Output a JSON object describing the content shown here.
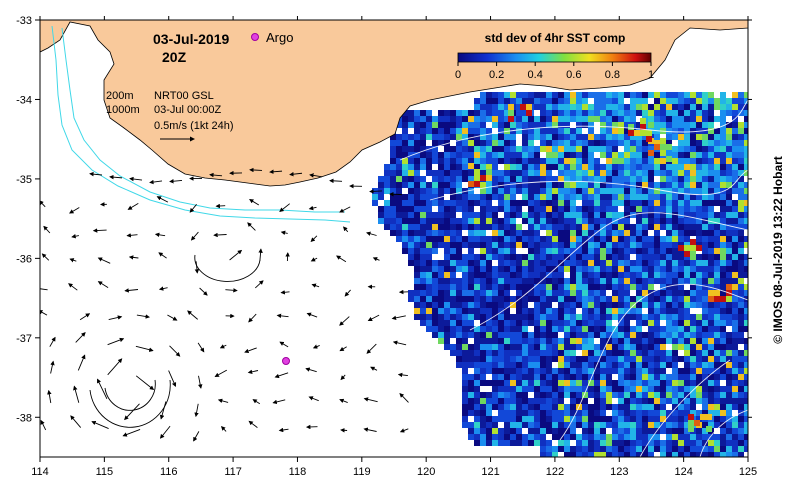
{
  "title": {
    "date": "03-Jul-2019",
    "time": "20Z"
  },
  "legend": {
    "argo_label": "Argo",
    "isobath_200": "200m",
    "isobath_1000": "1000m",
    "product": "NRT00 GSL",
    "product_time": "03-Jul 00:00Z",
    "vector_scale": "0.5m/s (1kt 24h)"
  },
  "colorbar": {
    "title": "std dev of 4hr SST comp",
    "ticks": [
      "0",
      "0.2",
      "0.4",
      "0.6",
      "0.8",
      "1"
    ]
  },
  "axes": {
    "x_ticks": [
      "114",
      "115",
      "116",
      "117",
      "118",
      "119",
      "120",
      "121",
      "122",
      "123",
      "124",
      "125"
    ],
    "y_ticks": [
      "-33",
      "-34",
      "-35",
      "-36",
      "-37",
      "-38"
    ]
  },
  "credit": "© IMOS 08-Jul-2019 13:22 Hobart",
  "argo_float": {
    "lon": 117.8,
    "lat": -37.28
  },
  "colors": {
    "land": "#f9c99b",
    "ocean": "#ffffff",
    "isobath": "#40d8e8",
    "argo": "#e040e0"
  }
}
